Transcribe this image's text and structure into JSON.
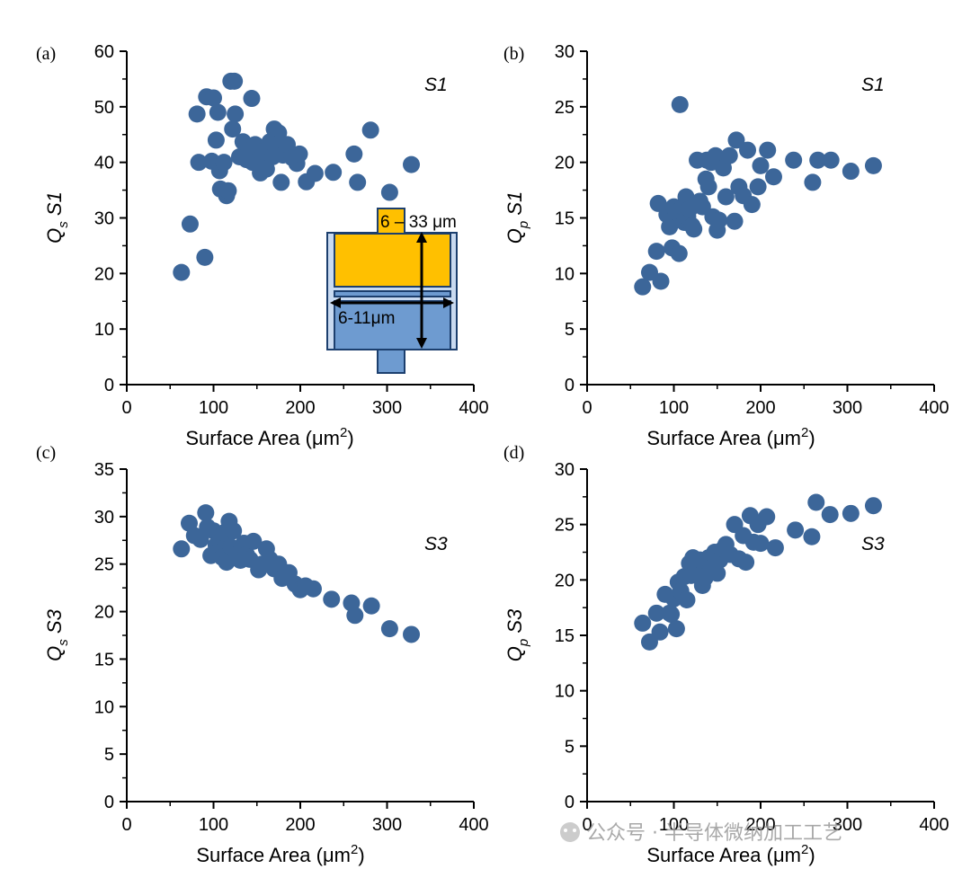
{
  "colors": {
    "marker": "#3c6699",
    "inset_top": "#ffc000",
    "inset_bottom": "#6e9bd0",
    "inset_wall": "#c9daf0",
    "axis": "#000000"
  },
  "chart_data": [
    {
      "type": "scatter",
      "panel_label": "(a)",
      "annotation": "S1",
      "xlabel": "Surface Area (",
      "xlabel_unit": "μm",
      "xlabel_sup": "2",
      "xlabel_end": ")",
      "ylabel_main": "Q",
      "ylabel_sub": "s",
      "ylabel_tail": " S1",
      "xlim": [
        0,
        400
      ],
      "ylim": [
        0,
        60
      ],
      "xticks": [
        "0",
        "100",
        "200",
        "300",
        "400"
      ],
      "yticks": [
        "0",
        "10",
        "20",
        "30",
        "40",
        "50",
        "60"
      ],
      "inset": {
        "label_height": "6 – 33 μm",
        "label_width": "6-11μm"
      },
      "points": [
        [
          63,
          20.2
        ],
        [
          73,
          28.9
        ],
        [
          81,
          48.7
        ],
        [
          83,
          40.0
        ],
        [
          90,
          22.9
        ],
        [
          92,
          51.8
        ],
        [
          98,
          40.2
        ],
        [
          100,
          51.6
        ],
        [
          103,
          44.0
        ],
        [
          105,
          49.0
        ],
        [
          107,
          38.5
        ],
        [
          108,
          35.2
        ],
        [
          112,
          40.0
        ],
        [
          115,
          34.0
        ],
        [
          117,
          34.9
        ],
        [
          120,
          54.6
        ],
        [
          122,
          46.0
        ],
        [
          124,
          54.6
        ],
        [
          125,
          48.7
        ],
        [
          130,
          41.0
        ],
        [
          134,
          43.7
        ],
        [
          138,
          40.5
        ],
        [
          141,
          42.5
        ],
        [
          144,
          51.5
        ],
        [
          145,
          40.0
        ],
        [
          148,
          43.2
        ],
        [
          152,
          39.5
        ],
        [
          154,
          38.1
        ],
        [
          157,
          42.0
        ],
        [
          161,
          38.8
        ],
        [
          165,
          43.7
        ],
        [
          168,
          41.0
        ],
        [
          170,
          46.0
        ],
        [
          175,
          45.3
        ],
        [
          177,
          43.5
        ],
        [
          178,
          36.4
        ],
        [
          180,
          41.3
        ],
        [
          185,
          43.2
        ],
        [
          191,
          40.8
        ],
        [
          196,
          39.8
        ],
        [
          199,
          41.5
        ],
        [
          207,
          36.5
        ],
        [
          217,
          38.0
        ],
        [
          238,
          38.2
        ],
        [
          262,
          41.5
        ],
        [
          266,
          36.4
        ],
        [
          281,
          45.8
        ],
        [
          303,
          34.6
        ],
        [
          328,
          39.6
        ]
      ]
    },
    {
      "type": "scatter",
      "panel_label": "(b)",
      "annotation": "S1",
      "xlabel": "Surface Area (",
      "xlabel_unit": "μm",
      "xlabel_sup": "2",
      "xlabel_end": ")",
      "ylabel_main": "Q",
      "ylabel_sub": "p",
      "ylabel_tail": " S1",
      "xlim": [
        0,
        400
      ],
      "ylim": [
        0,
        30
      ],
      "xticks": [
        "0",
        "100",
        "200",
        "300",
        "400"
      ],
      "yticks": [
        "0",
        "5",
        "10",
        "15",
        "20",
        "25",
        "30"
      ],
      "points": [
        [
          64,
          8.8
        ],
        [
          72,
          10.1
        ],
        [
          80,
          12.0
        ],
        [
          82,
          16.3
        ],
        [
          85,
          9.3
        ],
        [
          92,
          15.3
        ],
        [
          95,
          14.2
        ],
        [
          97,
          14.7
        ],
        [
          98,
          12.3
        ],
        [
          100,
          16.0
        ],
        [
          103,
          15.5
        ],
        [
          106,
          11.8
        ],
        [
          107,
          25.2
        ],
        [
          110,
          16.0
        ],
        [
          112,
          14.6
        ],
        [
          114,
          16.9
        ],
        [
          116,
          15.1
        ],
        [
          118,
          15.8
        ],
        [
          121,
          14.3
        ],
        [
          123,
          14.0
        ],
        [
          125,
          16.2
        ],
        [
          127,
          20.2
        ],
        [
          130,
          16.5
        ],
        [
          133,
          16.0
        ],
        [
          137,
          18.5
        ],
        [
          138,
          20.2
        ],
        [
          140,
          17.8
        ],
        [
          143,
          20.0
        ],
        [
          145,
          15.1
        ],
        [
          148,
          20.6
        ],
        [
          150,
          13.9
        ],
        [
          152,
          14.8
        ],
        [
          157,
          19.5
        ],
        [
          160,
          16.9
        ],
        [
          164,
          20.6
        ],
        [
          170,
          14.7
        ],
        [
          172,
          22.0
        ],
        [
          175,
          17.8
        ],
        [
          180,
          17.0
        ],
        [
          185,
          21.1
        ],
        [
          190,
          16.2
        ],
        [
          197,
          17.8
        ],
        [
          200,
          19.7
        ],
        [
          208,
          21.1
        ],
        [
          215,
          18.7
        ],
        [
          238,
          20.2
        ],
        [
          260,
          18.2
        ],
        [
          266,
          20.2
        ],
        [
          281,
          20.2
        ],
        [
          304,
          19.2
        ],
        [
          330,
          19.7
        ]
      ]
    },
    {
      "type": "scatter",
      "panel_label": "(c)",
      "annotation": "S3",
      "xlabel": "Surface Area (",
      "xlabel_unit": "μm",
      "xlabel_sup": "2",
      "xlabel_end": ")",
      "ylabel_main": "Q",
      "ylabel_sub": "s",
      "ylabel_tail": " S3",
      "xlim": [
        0,
        400
      ],
      "ylim": [
        0,
        35
      ],
      "xticks": [
        "0",
        "100",
        "200",
        "300",
        "400"
      ],
      "yticks": [
        "0",
        "5",
        "10",
        "15",
        "20",
        "25",
        "30",
        "35"
      ],
      "points": [
        [
          63,
          26.6
        ],
        [
          72,
          29.3
        ],
        [
          78,
          28.0
        ],
        [
          85,
          27.6
        ],
        [
          91,
          30.4
        ],
        [
          93,
          28.9
        ],
        [
          97,
          25.9
        ],
        [
          100,
          28.5
        ],
        [
          103,
          27.0
        ],
        [
          105,
          26.2
        ],
        [
          108,
          27.9
        ],
        [
          110,
          25.7
        ],
        [
          112,
          28.3
        ],
        [
          115,
          25.2
        ],
        [
          118,
          29.5
        ],
        [
          120,
          26.8
        ],
        [
          123,
          28.5
        ],
        [
          127,
          26.0
        ],
        [
          131,
          25.4
        ],
        [
          135,
          27.2
        ],
        [
          138,
          26.0
        ],
        [
          142,
          25.5
        ],
        [
          146,
          27.4
        ],
        [
          152,
          24.4
        ],
        [
          156,
          25.0
        ],
        [
          161,
          26.6
        ],
        [
          165,
          25.5
        ],
        [
          170,
          24.5
        ],
        [
          175,
          25.0
        ],
        [
          179,
          23.5
        ],
        [
          187,
          24.1
        ],
        [
          194,
          22.9
        ],
        [
          200,
          22.3
        ],
        [
          206,
          22.7
        ],
        [
          215,
          22.4
        ],
        [
          236,
          21.3
        ],
        [
          259,
          20.9
        ],
        [
          263,
          19.6
        ],
        [
          282,
          20.6
        ],
        [
          303,
          18.2
        ],
        [
          328,
          17.6
        ]
      ]
    },
    {
      "type": "scatter",
      "panel_label": "(d)",
      "annotation": "S3",
      "xlabel": "Surface Area (",
      "xlabel_unit": "μm",
      "xlabel_sup": "2",
      "xlabel_end": ")",
      "ylabel_main": "Q",
      "ylabel_sub": "p",
      "ylabel_tail": " S3",
      "xlim": [
        0,
        400
      ],
      "ylim": [
        0,
        30
      ],
      "xticks": [
        "0",
        "100",
        "200",
        "300",
        "400"
      ],
      "yticks": [
        "0",
        "5",
        "10",
        "15",
        "20",
        "25",
        "30"
      ],
      "points": [
        [
          64,
          16.1
        ],
        [
          72,
          14.4
        ],
        [
          80,
          17.0
        ],
        [
          84,
          15.3
        ],
        [
          90,
          18.7
        ],
        [
          95,
          17.0
        ],
        [
          97,
          16.9
        ],
        [
          100,
          18.3
        ],
        [
          103,
          15.6
        ],
        [
          105,
          19.8
        ],
        [
          108,
          19.0
        ],
        [
          112,
          20.3
        ],
        [
          115,
          18.2
        ],
        [
          118,
          21.5
        ],
        [
          120,
          20.4
        ],
        [
          122,
          22.0
        ],
        [
          125,
          21.3
        ],
        [
          128,
          20.7
        ],
        [
          130,
          21.8
        ],
        [
          133,
          19.5
        ],
        [
          136,
          20.2
        ],
        [
          140,
          22.0
        ],
        [
          143,
          21.1
        ],
        [
          147,
          22.5
        ],
        [
          150,
          20.6
        ],
        [
          153,
          21.8
        ],
        [
          157,
          22.8
        ],
        [
          160,
          23.2
        ],
        [
          165,
          22.3
        ],
        [
          170,
          25.0
        ],
        [
          175,
          21.9
        ],
        [
          180,
          24.0
        ],
        [
          183,
          21.6
        ],
        [
          188,
          25.8
        ],
        [
          192,
          23.4
        ],
        [
          197,
          25.0
        ],
        [
          200,
          23.3
        ],
        [
          207,
          25.7
        ],
        [
          217,
          22.9
        ],
        [
          240,
          24.5
        ],
        [
          259,
          23.9
        ],
        [
          264,
          27.0
        ],
        [
          280,
          25.9
        ],
        [
          304,
          26.0
        ],
        [
          330,
          26.7
        ]
      ]
    }
  ],
  "watermark": {
    "text": "公众号 · 半导体微纳加工工艺"
  }
}
